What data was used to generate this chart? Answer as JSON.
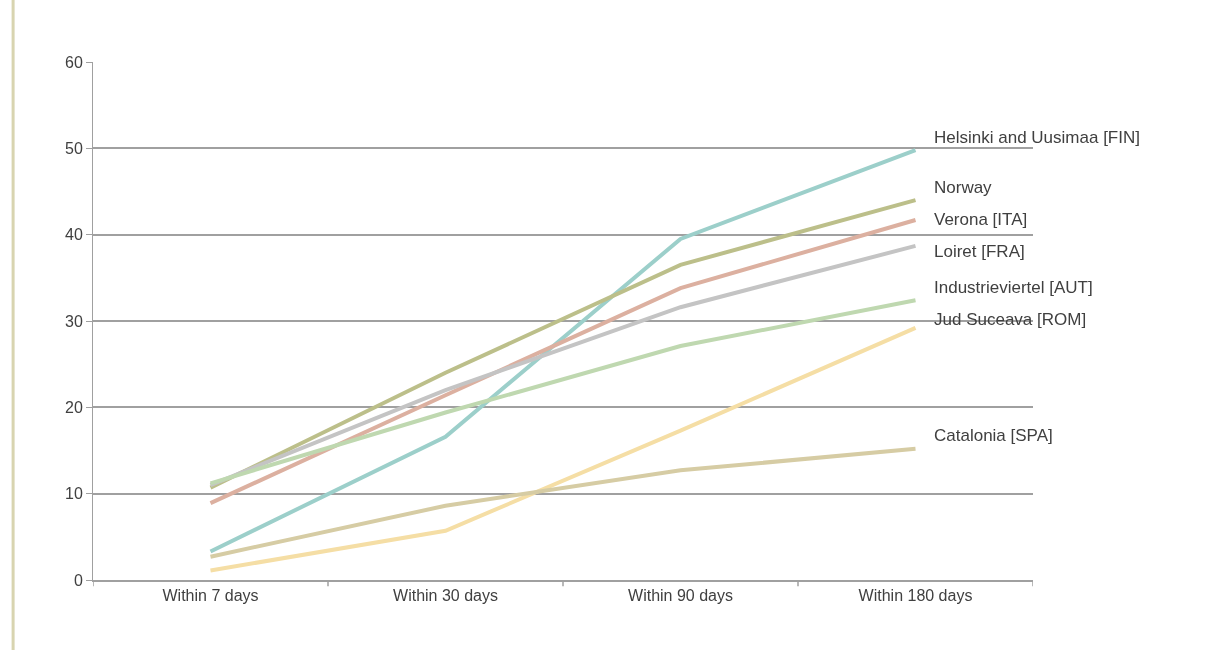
{
  "chart_data": {
    "type": "line",
    "categories": [
      "Within 7 days",
      "Within 30 days",
      "Within 90 days",
      "Within 180 days"
    ],
    "ylim": [
      0,
      60
    ],
    "yticks": [
      0,
      10,
      20,
      30,
      40,
      50,
      60
    ],
    "grid": "y",
    "legend": false,
    "marker": "none",
    "line_style": "solid",
    "series": [
      {
        "name": "Helsinki and Uusimaa [FIN]",
        "color": "#9ccfca",
        "values": [
          3.3,
          16.6,
          39.5,
          49.8
        ]
      },
      {
        "name": "Norway",
        "color": "#bcbf8a",
        "values": [
          10.7,
          24.0,
          36.5,
          44.0
        ]
      },
      {
        "name": "Verona [ITA]",
        "color": "#dcb0a0",
        "values": [
          8.9,
          21.4,
          33.8,
          41.7
        ]
      },
      {
        "name": "Loiret [FRA]",
        "color": "#c4c4c4",
        "values": [
          11.0,
          22.0,
          31.6,
          38.7
        ]
      },
      {
        "name": "Industrieviertel [AUT]",
        "color": "#bfd8b0",
        "values": [
          11.2,
          19.4,
          27.1,
          32.4
        ]
      },
      {
        "name": "Jud Suceava [ROM]",
        "color": "#f5dea5",
        "values": [
          1.1,
          5.7,
          17.3,
          29.2
        ]
      },
      {
        "name": "Catalonia [SPA]",
        "color": "#d6cca4",
        "values": [
          2.7,
          8.6,
          12.7,
          15.2
        ]
      }
    ]
  }
}
